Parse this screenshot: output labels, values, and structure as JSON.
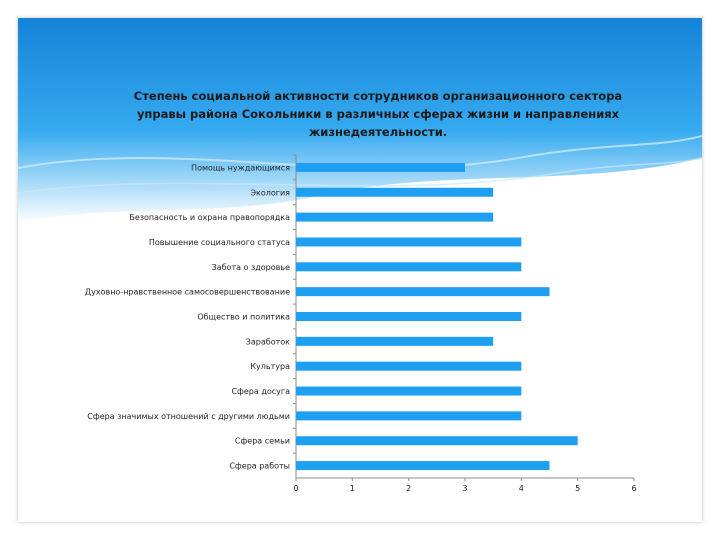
{
  "colors": {
    "bar": "#1f9ff2",
    "header_top": "#1583d8",
    "header_mid": "#36aaf0",
    "header_light": "#c9e8fb"
  },
  "chart_data": {
    "type": "bar",
    "orientation": "horizontal",
    "title_lines": [
      "Степень социальной активности сотрудников организационного сектора",
      "управы района Сокольники в различных сферах жизни и направлениях",
      "жизнедеятельности."
    ],
    "categories": [
      "Помощь нуждающимся",
      "Экология",
      "Безопасность и охрана правопорядка",
      "Повышение социального статуса",
      "Забота о здоровье",
      "Духовно-нравственное самосовершенствование",
      "Общество и политика",
      "Заработок",
      "Культура",
      "Сфера досуга",
      "Сфера значимых отношений с другими людьми",
      "Сфера семьи",
      "Сфера работы"
    ],
    "values": [
      3,
      3.5,
      3.5,
      4,
      4,
      4.5,
      4,
      3.5,
      4,
      4,
      4,
      5,
      4.5
    ],
    "xlim": [
      0,
      6
    ],
    "xticks": [
      "0",
      "1",
      "2",
      "3",
      "4",
      "5",
      "6"
    ],
    "grid": false,
    "legend": "none"
  }
}
